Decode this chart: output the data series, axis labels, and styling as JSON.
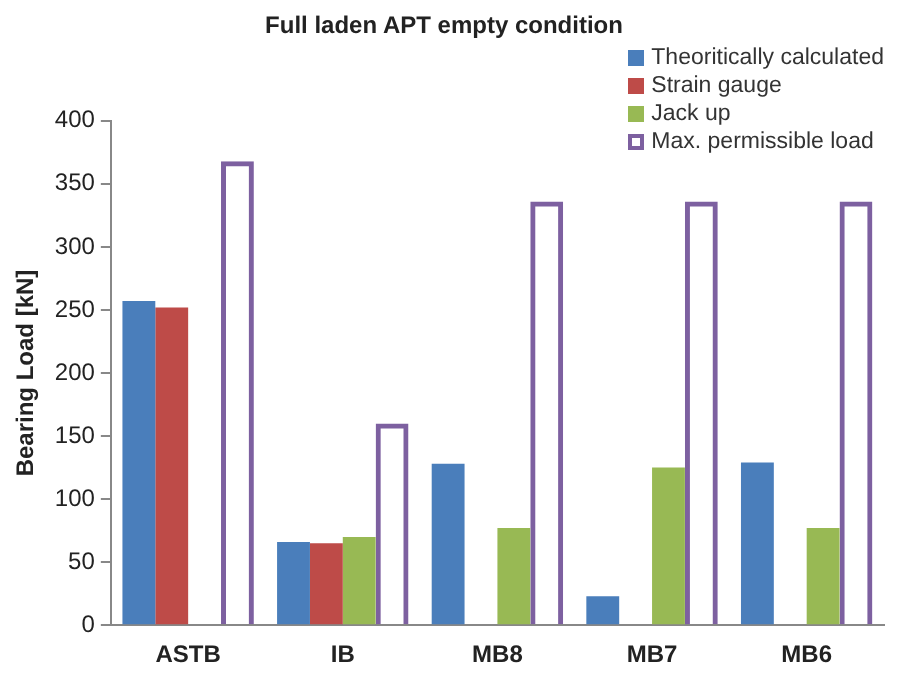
{
  "chart_data": {
    "type": "bar",
    "title": "Full laden APT empty condition",
    "ylabel": "Bearing Load [kN]",
    "categories": [
      "ASTB",
      "IB",
      "MB8",
      "MB7",
      "MB6"
    ],
    "series": [
      {
        "name": "Theoritically calculated",
        "color": "#4a7ebb",
        "values": [
          257,
          66,
          128,
          23,
          129
        ]
      },
      {
        "name": "Strain gauge",
        "color": "#be4b48",
        "values": [
          252,
          65,
          null,
          null,
          null
        ]
      },
      {
        "name": "Jack up",
        "color": "#98b954",
        "values": [
          null,
          70,
          77,
          125,
          77
        ]
      },
      {
        "name": "Max. permissible load",
        "color": "#7d60a0",
        "values": [
          368,
          160,
          336,
          336,
          336
        ]
      }
    ],
    "ylim": [
      0,
      400
    ],
    "yticks": [
      0,
      50,
      100,
      150,
      200,
      250,
      300,
      350,
      400
    ],
    "grid": false,
    "legend": "top right"
  }
}
